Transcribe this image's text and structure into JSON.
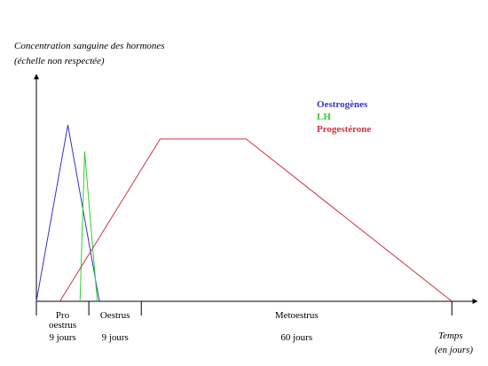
{
  "chart_data": {
    "type": "line",
    "ylabel": "Concentration sanguine des hormones",
    "ylabel_note": "(échelle non respectée)",
    "xlabel": "Temps",
    "xlabel_unit": "(en jours)",
    "xlim": [
      0,
      100
    ],
    "ylim": [
      0,
      100
    ],
    "grid": false,
    "legend_position": "top-right",
    "series": [
      {
        "name": "Oestrogènes",
        "color": "#3333cc",
        "points": [
          [
            0,
            0
          ],
          [
            7.5,
            100
          ],
          [
            15,
            0
          ]
        ]
      },
      {
        "name": "LH",
        "color": "#33cc33",
        "points": [
          [
            10.4,
            0
          ],
          [
            11.5,
            85
          ],
          [
            14.5,
            0
          ]
        ]
      },
      {
        "name": "Progestérone",
        "color": "#cc3344",
        "points": [
          [
            5.6,
            0
          ],
          [
            29.5,
            92
          ],
          [
            50,
            92
          ],
          [
            99,
            0
          ]
        ]
      }
    ],
    "phases": [
      {
        "line1": "Pro",
        "line2": "oestrus",
        "line3": "9 jours",
        "start": 0,
        "end": 12.5
      },
      {
        "line1": "Oestrus",
        "line2": "",
        "line3": "9 jours",
        "start": 12.5,
        "end": 25
      },
      {
        "line1": "Metoestrus",
        "line2": "",
        "line3": "60 jours",
        "start": 25,
        "end": 99
      }
    ]
  }
}
